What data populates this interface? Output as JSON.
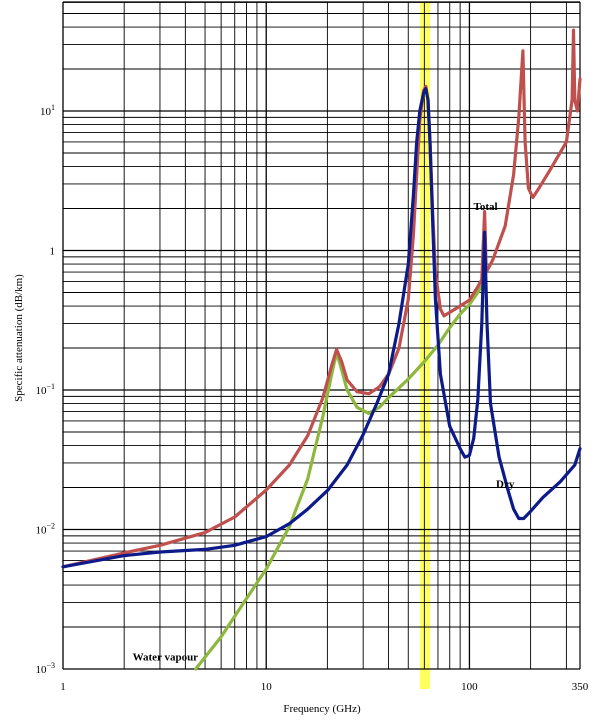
{
  "chart_data": {
    "type": "line",
    "title": "",
    "xlabel": "Frequency (GHz)",
    "ylabel": "Specific attenuation (dB/km)",
    "x_scale": "log",
    "y_scale": "log",
    "xlim": [
      1,
      350
    ],
    "ylim": [
      0.001,
      60
    ],
    "grid": true,
    "x_tick_labels": [
      {
        "value": 1,
        "label": "1"
      },
      {
        "value": 10,
        "label": "10"
      },
      {
        "value": 100,
        "label": "100"
      },
      {
        "value": 350,
        "label": "350"
      }
    ],
    "y_tick_labels": [
      {
        "value": 0.001,
        "mant": "10",
        "exp": "−3"
      },
      {
        "value": 0.01,
        "mant": "10",
        "exp": "−2"
      },
      {
        "value": 0.1,
        "mant": "10",
        "exp": "−1"
      },
      {
        "value": 1,
        "mant": "1",
        "exp": ""
      },
      {
        "value": 10,
        "mant": "10",
        "exp": "1"
      }
    ],
    "highlight_band": {
      "x_from": 57,
      "x_to": 64,
      "color": "#ffff44"
    },
    "series": [
      {
        "name": "Total",
        "color": "#c0504d",
        "points": [
          [
            1,
            0.0054
          ],
          [
            2,
            0.0068
          ],
          [
            3,
            0.0077
          ],
          [
            5,
            0.0095
          ],
          [
            7,
            0.0123
          ],
          [
            10,
            0.0192
          ],
          [
            13,
            0.029
          ],
          [
            16,
            0.047
          ],
          [
            19,
            0.088
          ],
          [
            21,
            0.15
          ],
          [
            22.2,
            0.195
          ],
          [
            23.5,
            0.16
          ],
          [
            25,
            0.118
          ],
          [
            28,
            0.097
          ],
          [
            32,
            0.094
          ],
          [
            36,
            0.105
          ],
          [
            40,
            0.13
          ],
          [
            45,
            0.2
          ],
          [
            50,
            0.45
          ],
          [
            53,
            1.3
          ],
          [
            55,
            3.5
          ],
          [
            57,
            8.5
          ],
          [
            59.5,
            14
          ],
          [
            61,
            15
          ],
          [
            62.5,
            12
          ],
          [
            64,
            6
          ],
          [
            66,
            1.8
          ],
          [
            68,
            0.7
          ],
          [
            72,
            0.38
          ],
          [
            75,
            0.34
          ],
          [
            80,
            0.36
          ],
          [
            90,
            0.4
          ],
          [
            100,
            0.44
          ],
          [
            110,
            0.55
          ],
          [
            115,
            0.62
          ],
          [
            118.75,
            1.9
          ],
          [
            121,
            0.7
          ],
          [
            130,
            0.85
          ],
          [
            150,
            1.5
          ],
          [
            165,
            3.5
          ],
          [
            175,
            9
          ],
          [
            183.3,
            27
          ],
          [
            188,
            6
          ],
          [
            195,
            2.8
          ],
          [
            205,
            2.4
          ],
          [
            220,
            2.8
          ],
          [
            250,
            3.8
          ],
          [
            300,
            6
          ],
          [
            320,
            12
          ],
          [
            325,
            38
          ],
          [
            330,
            12
          ],
          [
            340,
            10
          ],
          [
            350,
            17
          ]
        ]
      },
      {
        "name": "Dry",
        "color": "#0d1b8a",
        "points": [
          [
            1,
            0.0054
          ],
          [
            2,
            0.0065
          ],
          [
            3,
            0.0069
          ],
          [
            5,
            0.0072
          ],
          [
            7,
            0.0077
          ],
          [
            10,
            0.0089
          ],
          [
            13,
            0.011
          ],
          [
            16,
            0.014
          ],
          [
            20,
            0.019
          ],
          [
            25,
            0.029
          ],
          [
            30,
            0.048
          ],
          [
            35,
            0.08
          ],
          [
            40,
            0.13
          ],
          [
            45,
            0.3
          ],
          [
            50,
            0.8
          ],
          [
            53,
            2.5
          ],
          [
            55,
            6
          ],
          [
            57,
            10
          ],
          [
            59.5,
            13.5
          ],
          [
            61,
            14.5
          ],
          [
            62.5,
            12
          ],
          [
            64,
            6
          ],
          [
            66,
            1.5
          ],
          [
            68,
            0.45
          ],
          [
            72,
            0.13
          ],
          [
            80,
            0.055
          ],
          [
            90,
            0.038
          ],
          [
            95,
            0.033
          ],
          [
            100,
            0.034
          ],
          [
            105,
            0.045
          ],
          [
            110,
            0.085
          ],
          [
            115,
            0.3
          ],
          [
            118.75,
            1.35
          ],
          [
            122,
            0.3
          ],
          [
            127,
            0.08
          ],
          [
            140,
            0.033
          ],
          [
            155,
            0.019
          ],
          [
            165,
            0.014
          ],
          [
            175,
            0.012
          ],
          [
            185,
            0.012
          ],
          [
            200,
            0.0135
          ],
          [
            230,
            0.017
          ],
          [
            280,
            0.022
          ],
          [
            330,
            0.029
          ],
          [
            350,
            0.038
          ]
        ]
      },
      {
        "name": "Water vapour",
        "color": "#8db83d",
        "points": [
          [
            4.5,
            0.001
          ],
          [
            6,
            0.0017
          ],
          [
            8,
            0.0032
          ],
          [
            10,
            0.0052
          ],
          [
            13,
            0.0105
          ],
          [
            16,
            0.023
          ],
          [
            19,
            0.065
          ],
          [
            21,
            0.13
          ],
          [
            22.2,
            0.185
          ],
          [
            23.5,
            0.14
          ],
          [
            25,
            0.1
          ],
          [
            28,
            0.075
          ],
          [
            32,
            0.068
          ],
          [
            36,
            0.075
          ],
          [
            40,
            0.088
          ],
          [
            50,
            0.12
          ],
          [
            60,
            0.16
          ],
          [
            70,
            0.21
          ],
          [
            80,
            0.28
          ],
          [
            90,
            0.35
          ],
          [
            100,
            0.41
          ],
          [
            110,
            0.5
          ],
          [
            118.75,
            0.6
          ]
        ]
      }
    ],
    "annotations": [
      {
        "text": "Total",
        "x": 120,
        "y": 1.95
      },
      {
        "text": "Dry",
        "x": 150,
        "y": 0.02
      },
      {
        "text": "Water vapour",
        "x": 2.2,
        "y": 0.00115
      }
    ]
  }
}
